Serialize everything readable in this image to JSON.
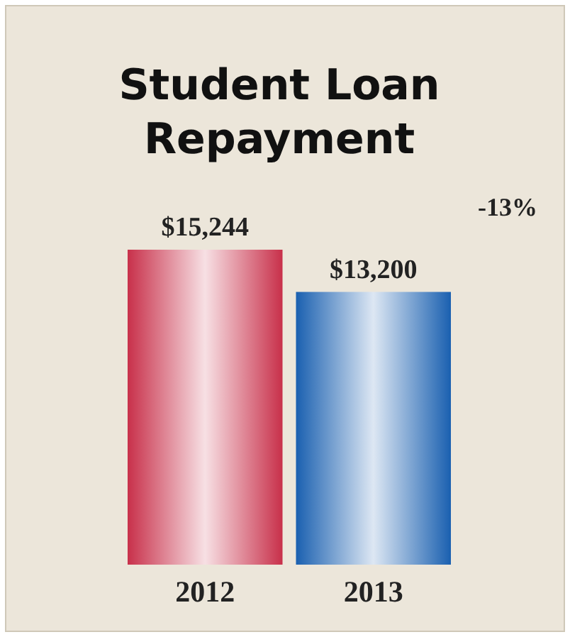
{
  "chart_data": {
    "type": "bar",
    "title": "Student Loan Repayment",
    "categories": [
      "2012",
      "2013"
    ],
    "values": [
      15244,
      13200
    ],
    "colors": [
      "#c8304a",
      "#1a60b0"
    ],
    "value_labels": [
      "$15,244",
      "$13,200"
    ],
    "annotations": [
      "-13%"
    ]
  }
}
